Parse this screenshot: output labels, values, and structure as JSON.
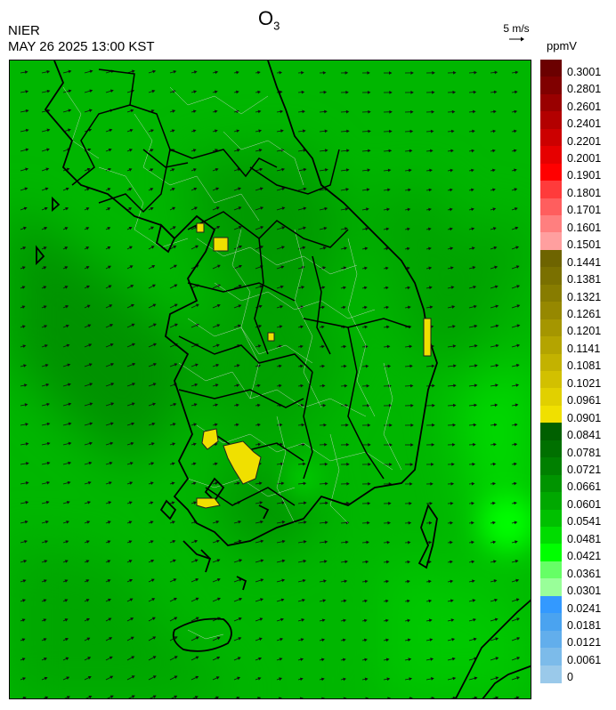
{
  "header": {
    "org": "NIER",
    "timestamp": "MAY 26 2025 13:00 KST",
    "title_main": "O",
    "title_sub": "3"
  },
  "wind_reference": {
    "label": "5 m/s"
  },
  "colorbar": {
    "unit": "ppmV",
    "labels": [
      "0.3001",
      "0.2801",
      "0.2601",
      "0.2401",
      "0.2201",
      "0.2001",
      "0.1901",
      "0.1801",
      "0.1701",
      "0.1601",
      "0.1501",
      "0.1441",
      "0.1381",
      "0.1321",
      "0.1261",
      "0.1201",
      "0.1141",
      "0.1081",
      "0.1021",
      "0.0961",
      "0.0901",
      "0.0841",
      "0.0781",
      "0.0721",
      "0.0661",
      "0.0601",
      "0.0541",
      "0.0481",
      "0.0421",
      "0.0361",
      "0.0301",
      "0.0241",
      "0.0181",
      "0.0121",
      "0.0061",
      "0"
    ],
    "colors": [
      "#6b0000",
      "#800000",
      "#990000",
      "#b30000",
      "#cc0000",
      "#e60000",
      "#ff0000",
      "#ff3b3b",
      "#ff5e5e",
      "#ff7f7f",
      "#ff9f9f",
      "#6e6400",
      "#7a7000",
      "#877c00",
      "#968800",
      "#a59600",
      "#b4a400",
      "#c3b200",
      "#d2c000",
      "#e1d000",
      "#f0e000",
      "#006000",
      "#007000",
      "#008000",
      "#009400",
      "#00a800",
      "#00c000",
      "#00dc00",
      "#00ff00",
      "#66ff66",
      "#99ff99",
      "#3399ff",
      "#4aa3f0",
      "#62aeec",
      "#7cbbea",
      "#9ac9ea"
    ]
  }
}
